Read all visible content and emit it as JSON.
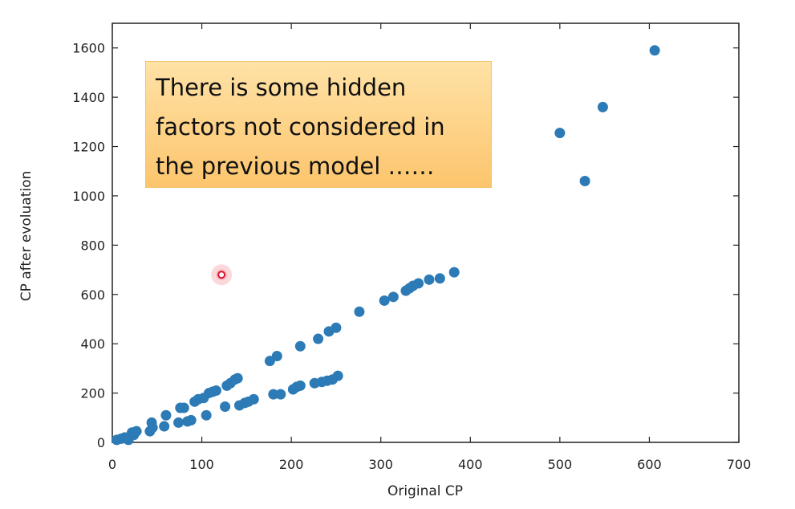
{
  "chart_data": {
    "type": "scatter",
    "title": "",
    "xlabel": "Original CP",
    "ylabel": "CP after evoluation",
    "xlim": [
      0,
      700
    ],
    "ylim": [
      0,
      1700
    ],
    "xticks": [
      0,
      100,
      200,
      300,
      400,
      500,
      600,
      700
    ],
    "yticks": [
      0,
      200,
      400,
      600,
      800,
      1000,
      1200,
      1400,
      1600
    ],
    "xtick_labels": [
      "0",
      "100",
      "200",
      "300",
      "400",
      "500",
      "600",
      "700"
    ],
    "ytick_labels": [
      "0",
      "200",
      "400",
      "600",
      "800",
      "1000",
      "1200",
      "1400",
      "1600"
    ],
    "grid": false,
    "marker_color": "#2c7bb6",
    "highlight_color": "#e0102a",
    "series": [
      {
        "points": [
          [
            5,
            10
          ],
          [
            10,
            15
          ],
          [
            14,
            20
          ],
          [
            18,
            10
          ],
          [
            22,
            40
          ],
          [
            24,
            30
          ],
          [
            27,
            45
          ],
          [
            42,
            45
          ],
          [
            44,
            80
          ],
          [
            45,
            60
          ],
          [
            58,
            65
          ],
          [
            60,
            110
          ],
          [
            74,
            80
          ],
          [
            76,
            140
          ],
          [
            80,
            140
          ],
          [
            84,
            85
          ],
          [
            88,
            90
          ],
          [
            92,
            165
          ],
          [
            96,
            175
          ],
          [
            102,
            180
          ],
          [
            105,
            110
          ],
          [
            108,
            200
          ],
          [
            112,
            205
          ],
          [
            116,
            210
          ],
          [
            126,
            145
          ],
          [
            128,
            230
          ],
          [
            132,
            240
          ],
          [
            137,
            255
          ],
          [
            140,
            260
          ],
          [
            142,
            150
          ],
          [
            148,
            160
          ],
          [
            152,
            165
          ],
          [
            158,
            175
          ],
          [
            176,
            330
          ],
          [
            180,
            195
          ],
          [
            184,
            350
          ],
          [
            188,
            195
          ],
          [
            202,
            215
          ],
          [
            206,
            225
          ],
          [
            210,
            230
          ],
          [
            210,
            390
          ],
          [
            226,
            240
          ],
          [
            230,
            420
          ],
          [
            234,
            245
          ],
          [
            240,
            250
          ],
          [
            242,
            450
          ],
          [
            246,
            255
          ],
          [
            250,
            465
          ],
          [
            252,
            270
          ],
          [
            276,
            530
          ],
          [
            304,
            575
          ],
          [
            314,
            590
          ],
          [
            328,
            615
          ],
          [
            332,
            625
          ],
          [
            336,
            635
          ],
          [
            342,
            645
          ],
          [
            354,
            660
          ],
          [
            366,
            665
          ],
          [
            382,
            690
          ],
          [
            500,
            1255
          ],
          [
            528,
            1060
          ],
          [
            548,
            1360
          ],
          [
            606,
            1590
          ]
        ]
      }
    ],
    "highlight_point": [
      122,
      680
    ],
    "annotation": {
      "lines": [
        "There is some hidden",
        "factors not considered in",
        "the previous model ……"
      ],
      "position": "top-left"
    }
  }
}
